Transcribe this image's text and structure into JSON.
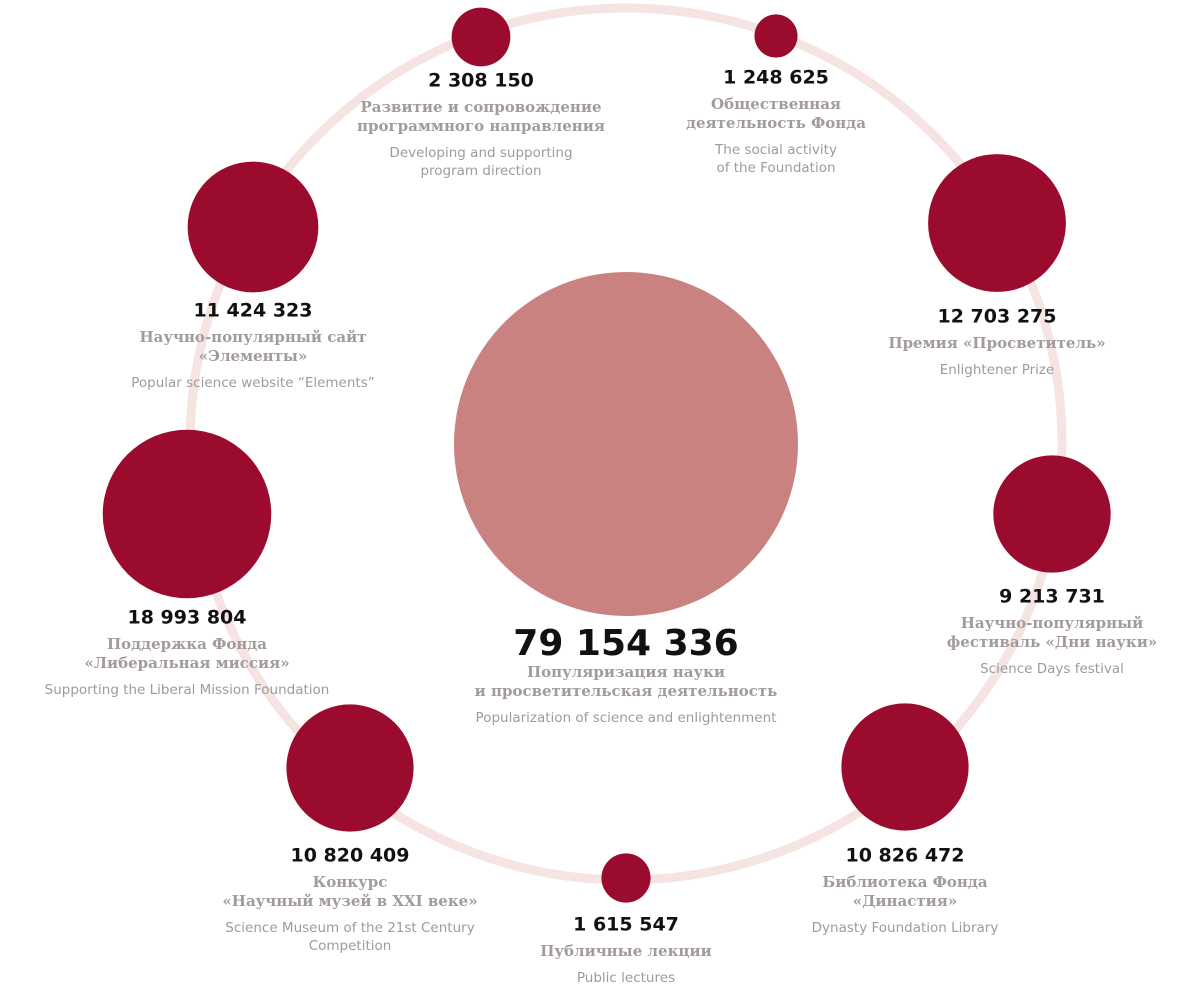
{
  "chart_data": {
    "type": "bubble",
    "color": "#9b0b2e",
    "total_color": "#c98280",
    "ring_color": "#f5e4e2",
    "total": {
      "value": 79154336,
      "value_label": "79 154 336",
      "label": [
        "Популяризация науки",
        "и просветительская деятельность"
      ],
      "sublabel": [
        "Popularization of science and enlightenment"
      ]
    },
    "items": [
      {
        "value": 2308150,
        "value_label": "2 308 150",
        "label": [
          "Развитие и сопровождение",
          "программного направления"
        ],
        "sublabel": [
          "Developing and supporting",
          "program direction"
        ]
      },
      {
        "value": 1248625,
        "value_label": "1 248 625",
        "label": [
          "Общественная",
          "деятельность Фонда"
        ],
        "sublabel": [
          "The social activity",
          "of the Foundation"
        ]
      },
      {
        "value": 12703275,
        "value_label": "12 703 275",
        "label": [
          "Премия «Просветитель»"
        ],
        "sublabel": [
          "Enlightener Prize"
        ]
      },
      {
        "value": 9213731,
        "value_label": "9 213 731",
        "label": [
          "Научно-популярный",
          "фестиваль «Дни науки»"
        ],
        "sublabel": [
          "Science Days festival"
        ]
      },
      {
        "value": 10826472,
        "value_label": "10 826 472",
        "label": [
          "Библиотека Фонда",
          "«Династия»"
        ],
        "sublabel": [
          "Dynasty Foundation Library"
        ]
      },
      {
        "value": 1615547,
        "value_label": "1 615 547",
        "label": [
          "Публичные лекции"
        ],
        "sublabel": [
          "Public lectures"
        ]
      },
      {
        "value": 10820409,
        "value_label": "10 820 409",
        "label": [
          "Конкурс",
          "«Научный музей в XXI веке»"
        ],
        "sublabel": [
          "Science Museum of the 21st Century",
          "Competition"
        ]
      },
      {
        "value": 18993804,
        "value_label": "18 993 804",
        "label": [
          "Поддержка Фонда",
          "«Либеральная миссия»"
        ],
        "sublabel": [
          "Supporting the Liberal Mission Foundation"
        ]
      },
      {
        "value": 11424323,
        "value_label": "11 424 323",
        "label": [
          "Научно-популярный сайт",
          "«Элементы»"
        ],
        "sublabel": [
          "Popular science website “Elements”"
        ]
      }
    ]
  }
}
